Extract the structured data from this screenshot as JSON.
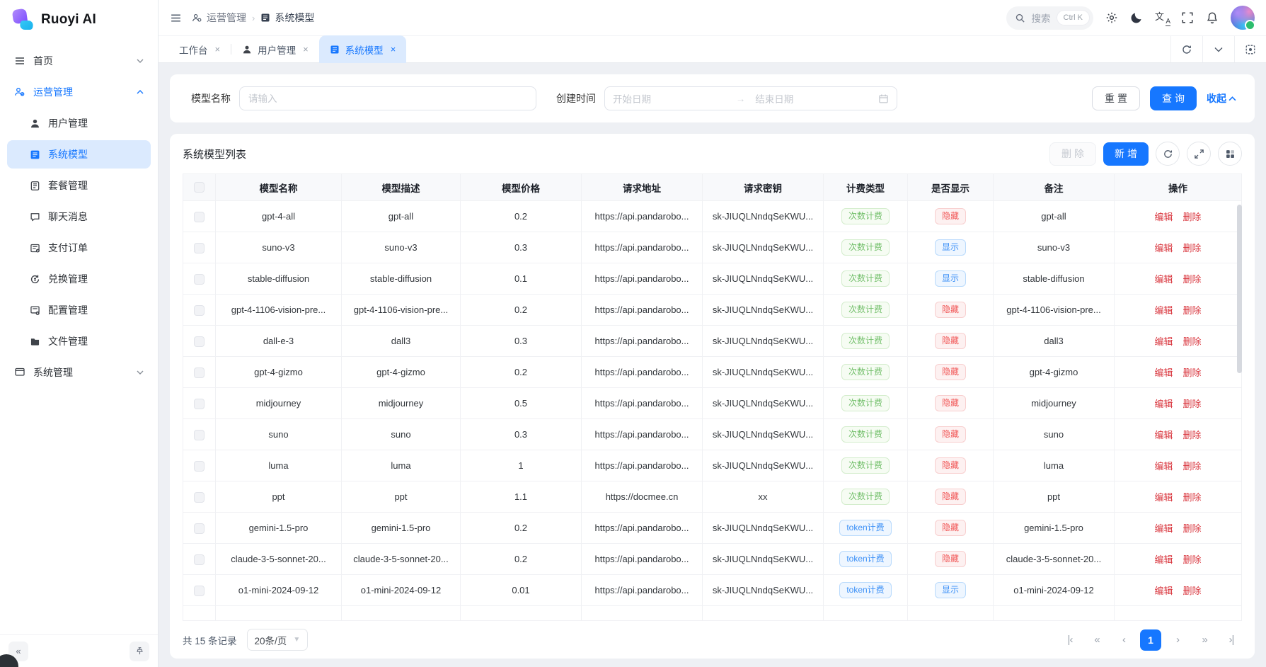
{
  "app": {
    "title": "Ruoyi AI"
  },
  "sidebar": {
    "home": {
      "label": "首页"
    },
    "operations": {
      "label": "运营管理"
    },
    "system": {
      "label": "系统管理"
    },
    "submenu": [
      {
        "label": "用户管理",
        "icon": "user-icon",
        "active": false
      },
      {
        "label": "系统模型",
        "icon": "document-icon",
        "active": true
      },
      {
        "label": "套餐管理",
        "icon": "package-icon",
        "active": false
      },
      {
        "label": "聊天消息",
        "icon": "chat-icon",
        "active": false
      },
      {
        "label": "支付订单",
        "icon": "order-icon",
        "active": false
      },
      {
        "label": "兑换管理",
        "icon": "exchange-icon",
        "active": false
      },
      {
        "label": "配置管理",
        "icon": "config-icon",
        "active": false
      },
      {
        "label": "文件管理",
        "icon": "folder-icon",
        "active": false
      }
    ]
  },
  "header": {
    "breadcrumb": [
      {
        "label": "运营管理"
      },
      {
        "label": "系统模型"
      }
    ],
    "search": {
      "placeholder": "搜索",
      "shortcut": "Ctrl K"
    }
  },
  "tabs": [
    {
      "label": "工作台"
    },
    {
      "label": "用户管理"
    },
    {
      "label": "系统模型"
    }
  ],
  "filter": {
    "model_name_label": "模型名称",
    "model_name_placeholder": "请输入",
    "create_time_label": "创建时间",
    "start_date_placeholder": "开始日期",
    "end_date_placeholder": "结束日期",
    "reset_label": "重置",
    "query_label": "查询",
    "collapse_label": "收起"
  },
  "list": {
    "title": "系统模型列表",
    "delete_label": "删除",
    "add_label": "新增",
    "edit_label": "编辑",
    "remove_label": "删除",
    "columns": [
      "模型名称",
      "模型描述",
      "模型价格",
      "请求地址",
      "请求密钥",
      "计费类型",
      "是否显示",
      "备注",
      "操作"
    ],
    "rows": [
      {
        "name": "gpt-4-all",
        "desc": "gpt-all",
        "price": "0.2",
        "url": "https://api.pandarobo...",
        "key": "sk-JIUQLNndqSeKWU...",
        "billing": {
          "label": "次数计费",
          "type": "green"
        },
        "visible": {
          "label": "隐藏",
          "type": "red"
        },
        "remark": "gpt-all"
      },
      {
        "name": "suno-v3",
        "desc": "suno-v3",
        "price": "0.3",
        "url": "https://api.pandarobo...",
        "key": "sk-JIUQLNndqSeKWU...",
        "billing": {
          "label": "次数计费",
          "type": "green"
        },
        "visible": {
          "label": "显示",
          "type": "blue"
        },
        "remark": "suno-v3"
      },
      {
        "name": "stable-diffusion",
        "desc": "stable-diffusion",
        "price": "0.1",
        "url": "https://api.pandarobo...",
        "key": "sk-JIUQLNndqSeKWU...",
        "billing": {
          "label": "次数计费",
          "type": "green"
        },
        "visible": {
          "label": "显示",
          "type": "blue"
        },
        "remark": "stable-diffusion"
      },
      {
        "name": "gpt-4-1106-vision-pre...",
        "desc": "gpt-4-1106-vision-pre...",
        "price": "0.2",
        "url": "https://api.pandarobo...",
        "key": "sk-JIUQLNndqSeKWU...",
        "billing": {
          "label": "次数计费",
          "type": "green"
        },
        "visible": {
          "label": "隐藏",
          "type": "red"
        },
        "remark": "gpt-4-1106-vision-pre..."
      },
      {
        "name": "dall-e-3",
        "desc": "dall3",
        "price": "0.3",
        "url": "https://api.pandarobo...",
        "key": "sk-JIUQLNndqSeKWU...",
        "billing": {
          "label": "次数计费",
          "type": "green"
        },
        "visible": {
          "label": "隐藏",
          "type": "red"
        },
        "remark": "dall3"
      },
      {
        "name": "gpt-4-gizmo",
        "desc": "gpt-4-gizmo",
        "price": "0.2",
        "url": "https://api.pandarobo...",
        "key": "sk-JIUQLNndqSeKWU...",
        "billing": {
          "label": "次数计费",
          "type": "green"
        },
        "visible": {
          "label": "隐藏",
          "type": "red"
        },
        "remark": "gpt-4-gizmo"
      },
      {
        "name": "midjourney",
        "desc": "midjourney",
        "price": "0.5",
        "url": "https://api.pandarobo...",
        "key": "sk-JIUQLNndqSeKWU...",
        "billing": {
          "label": "次数计费",
          "type": "green"
        },
        "visible": {
          "label": "隐藏",
          "type": "red"
        },
        "remark": "midjourney"
      },
      {
        "name": "suno",
        "desc": "suno",
        "price": "0.3",
        "url": "https://api.pandarobo...",
        "key": "sk-JIUQLNndqSeKWU...",
        "billing": {
          "label": "次数计费",
          "type": "green"
        },
        "visible": {
          "label": "隐藏",
          "type": "red"
        },
        "remark": "suno"
      },
      {
        "name": "luma",
        "desc": "luma",
        "price": "1",
        "url": "https://api.pandarobo...",
        "key": "sk-JIUQLNndqSeKWU...",
        "billing": {
          "label": "次数计费",
          "type": "green"
        },
        "visible": {
          "label": "隐藏",
          "type": "red"
        },
        "remark": "luma"
      },
      {
        "name": "ppt",
        "desc": "ppt",
        "price": "1.1",
        "url": "https://docmee.cn",
        "key": "xx",
        "billing": {
          "label": "次数计费",
          "type": "green"
        },
        "visible": {
          "label": "隐藏",
          "type": "red"
        },
        "remark": "ppt"
      },
      {
        "name": "gemini-1.5-pro",
        "desc": "gemini-1.5-pro",
        "price": "0.2",
        "url": "https://api.pandarobo...",
        "key": "sk-JIUQLNndqSeKWU...",
        "billing": {
          "label": "token计费",
          "type": "blue"
        },
        "visible": {
          "label": "隐藏",
          "type": "red"
        },
        "remark": "gemini-1.5-pro"
      },
      {
        "name": "claude-3-5-sonnet-20...",
        "desc": "claude-3-5-sonnet-20...",
        "price": "0.2",
        "url": "https://api.pandarobo...",
        "key": "sk-JIUQLNndqSeKWU...",
        "billing": {
          "label": "token计费",
          "type": "blue"
        },
        "visible": {
          "label": "隐藏",
          "type": "red"
        },
        "remark": "claude-3-5-sonnet-20..."
      },
      {
        "name": "o1-mini-2024-09-12",
        "desc": "o1-mini-2024-09-12",
        "price": "0.01",
        "url": "https://api.pandarobo...",
        "key": "sk-JIUQLNndqSeKWU...",
        "billing": {
          "label": "token计费",
          "type": "blue"
        },
        "visible": {
          "label": "显示",
          "type": "blue"
        },
        "remark": "o1-mini-2024-09-12"
      }
    ]
  },
  "pagination": {
    "total_text": "共 15 条记录",
    "page_size": "20条/页",
    "current_page": "1"
  },
  "colors": {
    "primary": "#1677ff",
    "tag_green": "#74c06c",
    "tag_red": "#f15959",
    "tag_blue": "#3c90f7",
    "sidebar_active_bg": "#dbeafe"
  }
}
